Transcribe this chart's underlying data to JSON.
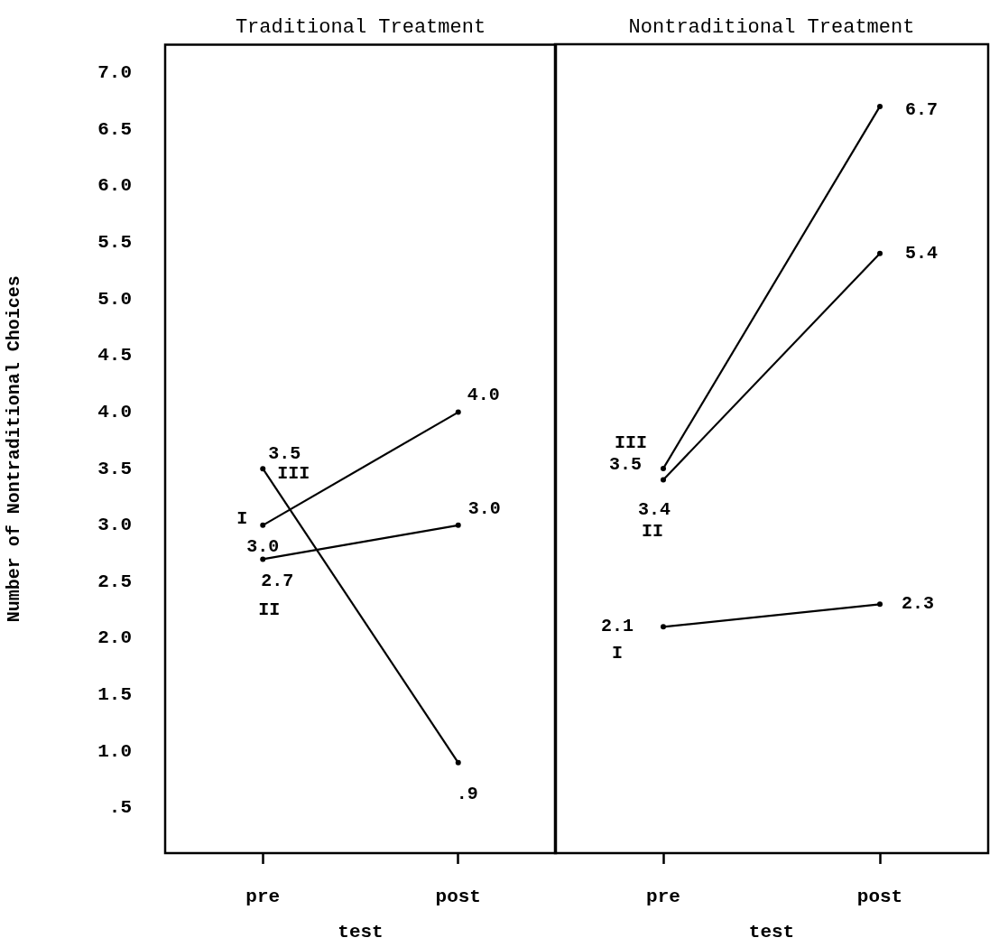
{
  "chart_data": [
    {
      "type": "line",
      "title": "Traditional Treatment",
      "xlabel": "test",
      "ylabel": "Number of Nontraditional Choices",
      "categories": [
        "pre",
        "post"
      ],
      "ylim": [
        0.1,
        7.25
      ],
      "yticks": [
        {
          "value": 0.5,
          "label": ".5"
        },
        {
          "value": 1,
          "label": "1.0"
        },
        {
          "value": 1.5,
          "label": "1.5"
        },
        {
          "value": 2,
          "label": "2.0"
        },
        {
          "value": 2.5,
          "label": "2.5"
        },
        {
          "value": 3,
          "label": "3.0"
        },
        {
          "value": 3.5,
          "label": "3.5"
        },
        {
          "value": 4,
          "label": "4.0"
        },
        {
          "value": 4.5,
          "label": "4.5"
        },
        {
          "value": 5,
          "label": "5.0"
        },
        {
          "value": 5.5,
          "label": "5.5"
        },
        {
          "value": 6,
          "label": "6.0"
        },
        {
          "value": 6.5,
          "label": "6.5"
        },
        {
          "value": 7,
          "label": "7.0"
        }
      ],
      "marker": "circle",
      "series": [
        {
          "name": "I",
          "color": "#000000",
          "values": [
            3.0,
            4.0
          ],
          "value_labels": [
            "3.0",
            "4.0"
          ]
        },
        {
          "name": "II",
          "color": "#000000",
          "values": [
            2.7,
            3.0
          ],
          "value_labels": [
            "2.7",
            "3.0"
          ]
        },
        {
          "name": "III",
          "color": "#000000",
          "values": [
            3.5,
            0.9
          ],
          "value_labels": [
            "3.5",
            ".9"
          ]
        }
      ]
    },
    {
      "type": "line",
      "title": "Nontraditional Treatment",
      "xlabel": "test",
      "categories": [
        "pre",
        "post"
      ],
      "ylim": [
        0.1,
        7.25
      ],
      "tick_labels": "x",
      "marker": "circle",
      "series": [
        {
          "name": "I",
          "color": "#000000",
          "values": [
            2.1,
            2.3
          ],
          "value_labels": [
            "2.1",
            "2.3"
          ]
        },
        {
          "name": "III",
          "color": "#000000",
          "values": [
            3.5,
            6.7
          ],
          "value_labels": [
            "3.5",
            "6.7"
          ]
        },
        {
          "name": "II",
          "color": "#000000",
          "values": [
            3.4,
            5.4
          ],
          "value_labels": [
            "3.4",
            "5.4"
          ]
        }
      ]
    }
  ]
}
